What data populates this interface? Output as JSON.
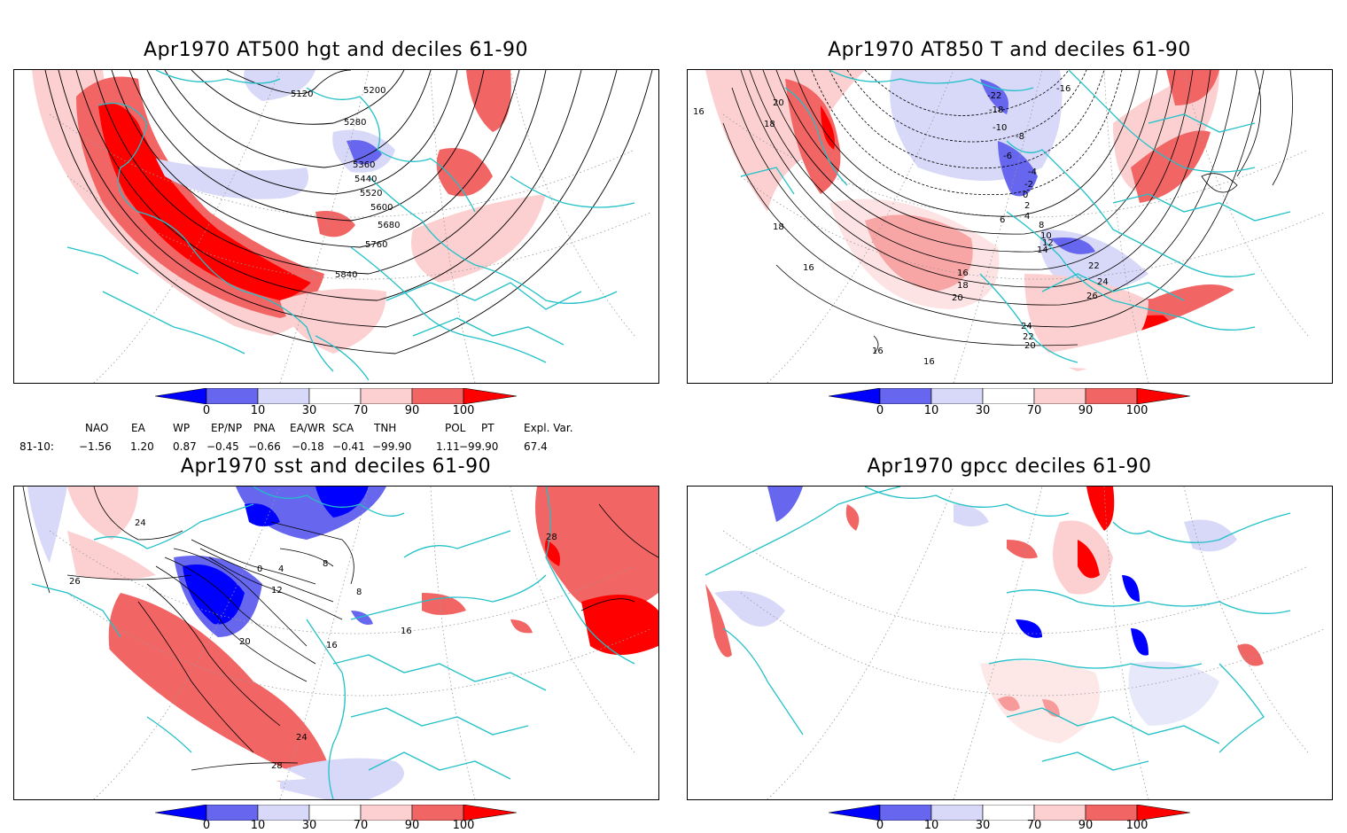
{
  "panels": [
    {
      "title": "Apr1970 AT500 hgt and deciles 61-90",
      "labels": [
        "5120",
        "5200",
        "5280",
        "5360",
        "5440",
        "5520",
        "5600",
        "5680",
        "5760",
        "5840"
      ]
    },
    {
      "title": "Apr1970 AT850 T and deciles 61-90",
      "labels": [
        "16",
        "18",
        "20",
        "22",
        "24",
        "-22",
        "-16",
        "-18",
        "-10",
        "-8",
        "-6",
        "-4",
        "-2",
        "0",
        "2",
        "4",
        "6",
        "8",
        "10",
        "12",
        "14",
        "16",
        "18",
        "20",
        "22",
        "24",
        "26",
        "24",
        "22",
        "20",
        "16",
        "16"
      ]
    },
    {
      "title": "Apr1970 sst and deciles 61-90",
      "labels": [
        "24",
        "26",
        "0",
        "4",
        "8",
        "12",
        "16",
        "20",
        "24",
        "28",
        "28",
        "16",
        "8"
      ]
    },
    {
      "title": "Apr1970 gpcc deciles 61-90",
      "labels": []
    }
  ],
  "colorbar": {
    "ticks": [
      "0",
      "10",
      "30",
      "70",
      "90",
      "100"
    ],
    "colors": [
      "#0000ff",
      "#6666ee",
      "#d8d8f8",
      "#ffffff",
      "#fcd0d0",
      "#f26565",
      "#ff0000"
    ]
  },
  "indices": {
    "headers": [
      "NAO",
      "EA",
      "WP",
      "EP/NP",
      "PNA",
      "EA/WR",
      "SCA",
      "TNH",
      "POL",
      "PT",
      "Expl. Var."
    ],
    "row_label": "81-10:",
    "values": [
      "−1.56",
      "1.20",
      "0.87",
      "−0.45",
      "−0.66",
      "−0.18",
      "−0.41",
      "−99.90",
      "1.11",
      "−99.90",
      "67.4"
    ]
  },
  "colors": {
    "coast": "#22c0c8",
    "grid": "#999999"
  }
}
